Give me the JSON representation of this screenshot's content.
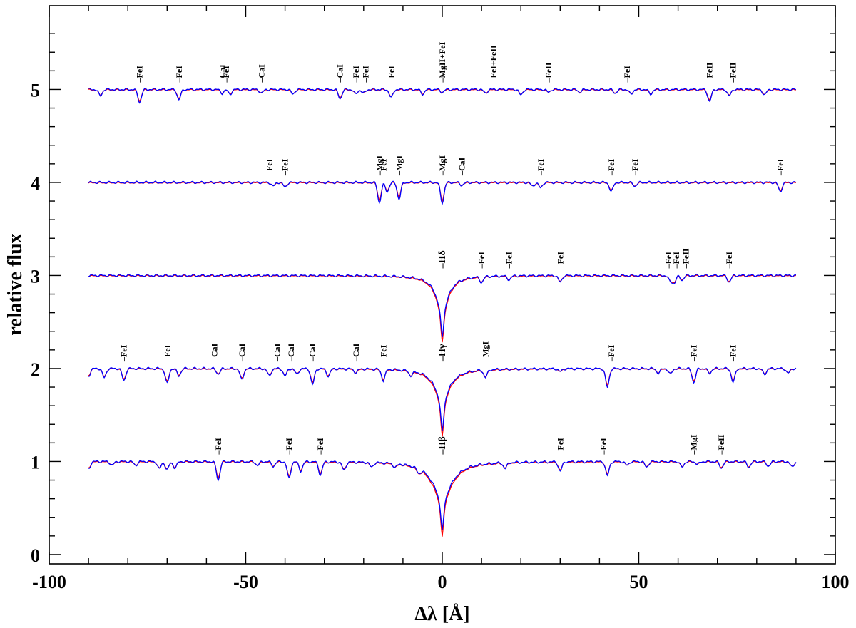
{
  "chart_data": {
    "type": "line",
    "xlabel": "Δλ [Å]",
    "ylabel": "relative flux",
    "xlim": [
      -100,
      100
    ],
    "ylim": [
      -0.1,
      5.9
    ],
    "x_ticks": [
      -100,
      -50,
      0,
      50,
      100
    ],
    "y_ticks": [
      0,
      1,
      2,
      3,
      4,
      5
    ],
    "grid": false,
    "x_range": [
      -90,
      90
    ],
    "colors": {
      "observed": "#0000ff",
      "model": "#ff0000",
      "axis": "#000000"
    },
    "panels": [
      {
        "offset": 5,
        "lorentz": [],
        "dips": [
          [
            -77,
            0.14
          ],
          [
            -87,
            0.07
          ],
          [
            -67,
            0.11
          ],
          [
            -56,
            0.04
          ],
          [
            -54,
            0.05
          ],
          [
            -46,
            0.04
          ],
          [
            -38,
            0.05
          ],
          [
            -26,
            0.1
          ],
          [
            -22,
            0.05
          ],
          [
            -20,
            0.04
          ],
          [
            -13,
            0.09
          ],
          [
            -5,
            0.05
          ],
          [
            0,
            0.03
          ],
          [
            11,
            0.04
          ],
          [
            20,
            0.06
          ],
          [
            27,
            0.03
          ],
          [
            35,
            0.03
          ],
          [
            44,
            0.04
          ],
          [
            48,
            0.05
          ],
          [
            53,
            0.05
          ],
          [
            68,
            0.13
          ],
          [
            73,
            0.07
          ],
          [
            82,
            0.06
          ]
        ],
        "labels": [
          {
            "x": -77,
            "text": "–FeI"
          },
          {
            "x": -67,
            "text": "–FeI"
          },
          {
            "x": -56,
            "text": "–CaI"
          },
          {
            "x": -55,
            "text": "–FeI"
          },
          {
            "x": -46,
            "text": "–CaI"
          },
          {
            "x": -26,
            "text": "–CaI"
          },
          {
            "x": -22,
            "text": "–FeI"
          },
          {
            "x": -19.5,
            "text": "–FeI"
          },
          {
            "x": -13,
            "text": "–FeI"
          },
          {
            "x": 0,
            "text": "–MgII+FeI"
          },
          {
            "x": 13,
            "text": "–FeI+FeII"
          },
          {
            "x": 27,
            "text": "–FeII"
          },
          {
            "x": 47,
            "text": "–FeI"
          },
          {
            "x": 68,
            "text": "–FeII"
          },
          {
            "x": 74,
            "text": "–FeII"
          }
        ]
      },
      {
        "offset": 4,
        "lorentz": [],
        "dips": [
          [
            -43,
            0.04
          ],
          [
            -40,
            0.05
          ],
          [
            -16,
            0.22
          ],
          [
            -14,
            0.1
          ],
          [
            -11,
            0.18
          ],
          [
            0,
            0.22
          ],
          [
            5,
            0.03
          ],
          [
            23,
            0.04
          ],
          [
            25,
            0.06
          ],
          [
            43,
            0.1
          ],
          [
            49,
            0.04
          ],
          [
            86,
            0.1
          ]
        ],
        "labels": [
          {
            "x": -44,
            "text": "–FeI"
          },
          {
            "x": -40,
            "text": "–FeI"
          },
          {
            "x": -16,
            "text": "–MgI"
          },
          {
            "x": -15,
            "text": "–FeI"
          },
          {
            "x": -11,
            "text": "–MgI"
          },
          {
            "x": 0,
            "text": "–MgI"
          },
          {
            "x": 5,
            "text": "–CaI"
          },
          {
            "x": 25,
            "text": "–FeI"
          },
          {
            "x": 43,
            "text": "–FeI"
          },
          {
            "x": 49,
            "text": "–FeI"
          },
          {
            "x": 86,
            "text": "–FeI"
          }
        ]
      },
      {
        "offset": 3,
        "lorentz": [
          [
            0,
            0.3,
            2.2
          ],
          [
            0,
            0.36,
            0.45
          ]
        ],
        "dips": [
          [
            10,
            0.06
          ],
          [
            17,
            0.04
          ],
          [
            30,
            0.07
          ],
          [
            58,
            0.06
          ],
          [
            59,
            0.08
          ],
          [
            61,
            0.05
          ],
          [
            73,
            0.07
          ]
        ],
        "labels": [
          {
            "x": 0,
            "text": "–Hδ"
          },
          {
            "x": 10,
            "text": "–FeI"
          },
          {
            "x": 17,
            "text": "–FeI"
          },
          {
            "x": 30,
            "text": "–FeI"
          },
          {
            "x": 57.5,
            "text": "–FeI"
          },
          {
            "x": 59.5,
            "text": "–FeI"
          },
          {
            "x": 62,
            "text": "–FeII"
          },
          {
            "x": 73,
            "text": "–FeI"
          }
        ]
      },
      {
        "offset": 2,
        "lorentz": [
          [
            0,
            0.28,
            2.6
          ],
          [
            0,
            0.4,
            0.45
          ]
        ],
        "dips": [
          [
            -90,
            0.08
          ],
          [
            -86,
            0.1
          ],
          [
            -81,
            0.13
          ],
          [
            -70,
            0.16
          ],
          [
            -67,
            0.08
          ],
          [
            -57,
            0.06
          ],
          [
            -51,
            0.12
          ],
          [
            -44,
            0.08
          ],
          [
            -40,
            0.08
          ],
          [
            -37,
            0.06
          ],
          [
            -33,
            0.17
          ],
          [
            -29,
            0.08
          ],
          [
            -22,
            0.04
          ],
          [
            -15,
            0.12
          ],
          [
            -8,
            0.05
          ],
          [
            11,
            0.08
          ],
          [
            30,
            0.03
          ],
          [
            42,
            0.2
          ],
          [
            55,
            0.05
          ],
          [
            58,
            0.06
          ],
          [
            64,
            0.15
          ],
          [
            68,
            0.05
          ],
          [
            74,
            0.15
          ],
          [
            82,
            0.06
          ],
          [
            88,
            0.05
          ]
        ],
        "labels": [
          {
            "x": -81,
            "text": "–FeI"
          },
          {
            "x": -70,
            "text": "–FeI"
          },
          {
            "x": -58,
            "text": "–CaI"
          },
          {
            "x": -51,
            "text": "–CaI"
          },
          {
            "x": -42,
            "text": "–CaI"
          },
          {
            "x": -38.5,
            "text": "–CaI"
          },
          {
            "x": -33,
            "text": "–CaI"
          },
          {
            "x": -22,
            "text": "–CaI"
          },
          {
            "x": -15,
            "text": "–FeI"
          },
          {
            "x": 0,
            "text": "–Hγ"
          },
          {
            "x": 11,
            "text": "–MgI"
          },
          {
            "x": 43,
            "text": "–FeI"
          },
          {
            "x": 64,
            "text": "–FeI"
          },
          {
            "x": 74,
            "text": "–FeI"
          }
        ]
      },
      {
        "offset": 1,
        "lorentz": [
          [
            0,
            0.35,
            3.2
          ],
          [
            0,
            0.4,
            0.45
          ]
        ],
        "dips": [
          [
            -90,
            0.08
          ],
          [
            -84,
            0.04
          ],
          [
            -78,
            0.04
          ],
          [
            -72,
            0.08
          ],
          [
            -70,
            0.09
          ],
          [
            -68,
            0.07
          ],
          [
            -57,
            0.2
          ],
          [
            -47,
            0.04
          ],
          [
            -43,
            0.05
          ],
          [
            -39,
            0.18
          ],
          [
            -36,
            0.1
          ],
          [
            -31,
            0.14
          ],
          [
            -25,
            0.09
          ],
          [
            -18,
            0.05
          ],
          [
            -12,
            0.04
          ],
          [
            -6,
            0.05
          ],
          [
            16,
            0.06
          ],
          [
            30,
            0.1
          ],
          [
            42,
            0.15
          ],
          [
            47,
            0.04
          ],
          [
            52,
            0.06
          ],
          [
            61,
            0.06
          ],
          [
            65,
            0.03
          ],
          [
            71,
            0.07
          ],
          [
            78,
            0.06
          ],
          [
            83,
            0.05
          ],
          [
            89,
            0.06
          ]
        ],
        "labels": [
          {
            "x": -57,
            "text": "–FeI"
          },
          {
            "x": -39,
            "text": "–FeI"
          },
          {
            "x": -31,
            "text": "–FeI"
          },
          {
            "x": 0,
            "text": "–Hβ"
          },
          {
            "x": 30,
            "text": "–FeI"
          },
          {
            "x": 41,
            "text": "–FeI"
          },
          {
            "x": 64,
            "text": "–MgI"
          },
          {
            "x": 71,
            "text": "–FeII"
          }
        ]
      }
    ]
  }
}
